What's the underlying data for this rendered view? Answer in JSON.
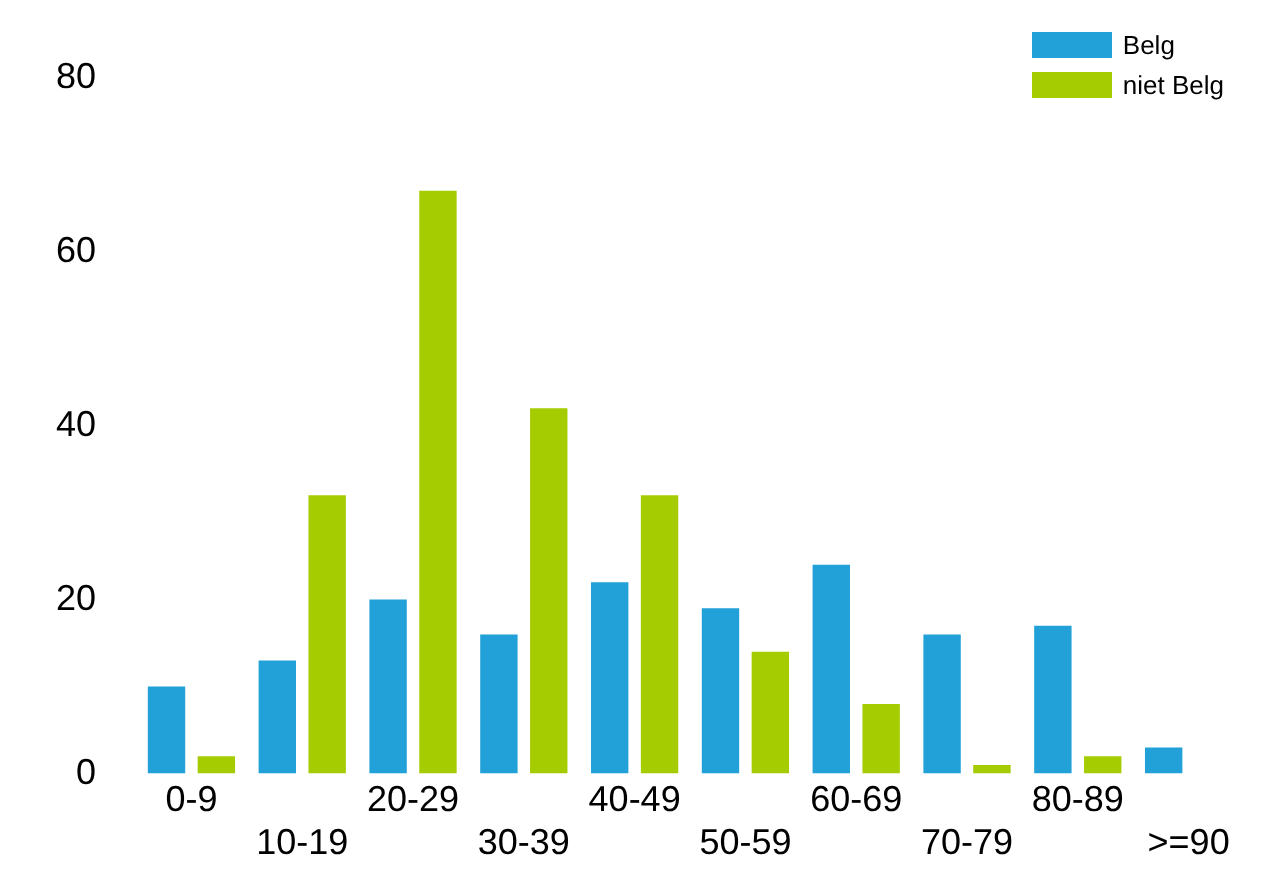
{
  "chart_data": {
    "type": "bar",
    "categories": [
      "0-9",
      "10-19",
      "20-29",
      "30-39",
      "40-49",
      "50-59",
      "60-69",
      "70-79",
      "80-89",
      ">=90"
    ],
    "series": [
      {
        "name": "Belg",
        "color": "#22a0d8",
        "values": [
          10,
          13,
          20,
          16,
          22,
          19,
          24,
          16,
          17,
          3
        ]
      },
      {
        "name": "niet Belg",
        "color": "#a4cc00",
        "values": [
          2,
          32,
          67,
          42,
          32,
          14,
          8,
          1,
          2,
          0
        ]
      }
    ],
    "ylim": [
      0,
      80
    ],
    "yticks": [
      0,
      20,
      40,
      60,
      80
    ],
    "grid": false,
    "legend": "top right"
  }
}
